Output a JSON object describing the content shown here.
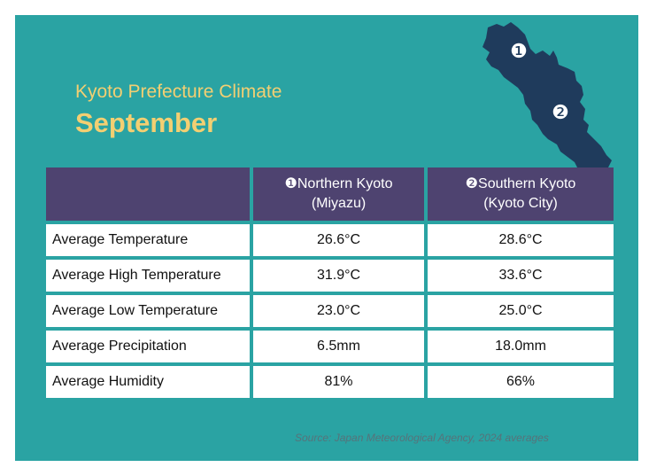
{
  "header": {
    "subtitle": "Kyoto Prefecture Climate",
    "title": "September"
  },
  "map": {
    "marker_1": "❶",
    "marker_2": "❷",
    "fill_color": "#1f3b5c"
  },
  "table": {
    "columns": [
      {
        "line1": "❶Northern Kyoto",
        "line2": "(Miyazu)"
      },
      {
        "line1": "❷Southern Kyoto",
        "line2": "(Kyoto City)"
      }
    ],
    "rows": [
      {
        "label": "Average Temperature",
        "north": "26.6°C",
        "south": "28.6°C"
      },
      {
        "label": "Average High Temperature",
        "north": "31.9°C",
        "south": "33.6°C"
      },
      {
        "label": "Average Low Temperature",
        "north": "23.0°C",
        "south": "25.0°C"
      },
      {
        "label": "Average Precipitation",
        "north": "6.5mm",
        "south": "18.0mm"
      },
      {
        "label": "Average Humidity",
        "north": "81%",
        "south": "66%"
      }
    ]
  },
  "source": "Source: Japan Meteorological Agency, 2024 averages",
  "colors": {
    "background": "#2aa3a3",
    "header_row": "#4e4370",
    "title_text": "#f3cf72"
  }
}
